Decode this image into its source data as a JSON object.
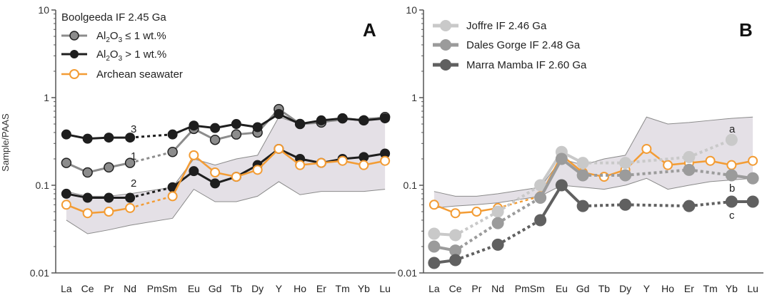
{
  "colors": {
    "axis": "#555555",
    "band_fill": "#e4e0e6",
    "band_stroke": "#8a8a8a",
    "seawater": "#f39c34",
    "boolgeeda_low": "#8c8c8c",
    "boolgeeda_high": "#1e1e1e",
    "joffre": "#c9c9c9",
    "dales": "#9b9b9b",
    "marra": "#606060"
  },
  "shared": {
    "ylabel": "Sample/PAAS",
    "y_ticks": [
      "0.01",
      "0.1",
      "1",
      "10"
    ],
    "categories": [
      "La",
      "Ce",
      "Pr",
      "Nd",
      "Pm",
      "Sm",
      "Eu",
      "Gd",
      "Tb",
      "Dy",
      "Y",
      "Ho",
      "Er",
      "Tm",
      "Yb",
      "Lu"
    ],
    "x_labels": [
      "La",
      "Ce",
      "Pr",
      "Nd",
      "PmSm",
      "Eu",
      "Gd",
      "Tb",
      "Dy",
      "Y",
      "Ho",
      "Er",
      "Tm",
      "Yb",
      "Lu"
    ]
  },
  "chart_data": [
    {
      "type": "line",
      "panel_label": "A",
      "yscale": "log",
      "ylim": [
        0.01,
        10
      ],
      "legend_position": "top-left",
      "legend_title": "Boolgeeda IF 2.45 Ga",
      "legend": [
        {
          "key": "low",
          "pre": "Al",
          "sub1": "2",
          "mid": "O",
          "sub2": "3",
          "post": " ≤ 1 wt.%"
        },
        {
          "key": "high",
          "pre": "Al",
          "sub1": "2",
          "mid": "O",
          "sub2": "3",
          "post": " > 1 wt.%"
        },
        {
          "key": "sw",
          "text": "Archean seawater"
        }
      ],
      "line_labels": [
        "3",
        "1",
        "2"
      ],
      "band": {
        "upper": [
          0.085,
          0.075,
          0.075,
          0.08,
          null,
          0.095,
          0.2,
          0.17,
          0.2,
          0.22,
          0.6,
          0.5,
          0.52,
          0.55,
          0.58,
          0.6
        ],
        "lower": [
          0.04,
          0.028,
          0.031,
          0.035,
          null,
          0.042,
          0.09,
          0.065,
          0.065,
          0.075,
          0.11,
          0.078,
          0.085,
          0.085,
          0.085,
          0.09
        ]
      },
      "series": [
        {
          "key": "low",
          "values": [
            0.18,
            0.14,
            0.16,
            0.18,
            null,
            0.24,
            0.44,
            0.33,
            0.38,
            0.4,
            0.74,
            0.5,
            0.52,
            0.58,
            0.55,
            0.6
          ]
        },
        {
          "key": "high",
          "values": [
            0.38,
            0.34,
            0.35,
            0.35,
            null,
            0.38,
            0.48,
            0.45,
            0.5,
            0.46,
            0.65,
            0.5,
            0.55,
            0.58,
            0.55,
            0.58
          ]
        },
        {
          "key": "high",
          "values": [
            0.08,
            0.072,
            0.072,
            0.072,
            null,
            0.095,
            0.145,
            0.105,
            0.125,
            0.17,
            0.26,
            0.2,
            0.18,
            0.2,
            0.21,
            0.23
          ]
        },
        {
          "key": "sw",
          "values": [
            0.06,
            0.048,
            0.05,
            0.055,
            null,
            0.075,
            0.22,
            0.14,
            0.125,
            0.15,
            0.26,
            0.17,
            0.18,
            0.19,
            0.17,
            0.19
          ]
        }
      ]
    },
    {
      "type": "line",
      "panel_label": "B",
      "yscale": "log",
      "ylim": [
        0.01,
        10
      ],
      "legend_position": "top-left",
      "legend": [
        {
          "key": "joffre",
          "text": "Joffre IF 2.46 Ga"
        },
        {
          "key": "dales",
          "text": "Dales Gorge IF 2.48 Ga"
        },
        {
          "key": "marra",
          "text": "Marra Mamba IF 2.60 Ga"
        }
      ],
      "line_labels": [
        "a",
        "b",
        "c"
      ],
      "band": {
        "upper": [
          0.085,
          0.075,
          0.075,
          0.08,
          null,
          0.095,
          0.2,
          0.17,
          0.2,
          0.22,
          0.6,
          0.5,
          0.52,
          0.55,
          0.58,
          0.6
        ],
        "lower": [
          0.055,
          0.058,
          0.06,
          0.063,
          null,
          0.075,
          0.1,
          0.095,
          0.09,
          0.1,
          0.12,
          0.09,
          0.1,
          0.11,
          0.115,
          0.12
        ]
      },
      "series": [
        {
          "key": "sw",
          "values": [
            0.06,
            0.048,
            0.05,
            0.055,
            null,
            0.075,
            0.22,
            0.14,
            0.125,
            0.15,
            0.26,
            0.17,
            0.18,
            0.19,
            0.17,
            0.19
          ]
        },
        {
          "key": "joffre",
          "values": [
            0.028,
            0.027,
            null,
            0.05,
            null,
            0.1,
            0.24,
            0.18,
            null,
            0.18,
            null,
            null,
            0.21,
            null,
            0.33,
            null
          ]
        },
        {
          "key": "dales",
          "values": [
            0.02,
            0.018,
            null,
            0.037,
            null,
            0.072,
            0.2,
            0.13,
            null,
            0.13,
            null,
            null,
            0.15,
            null,
            0.13,
            0.12
          ]
        },
        {
          "key": "marra",
          "values": [
            0.013,
            0.014,
            null,
            0.021,
            null,
            0.04,
            0.1,
            0.058,
            null,
            0.06,
            null,
            null,
            0.058,
            null,
            0.065,
            0.065
          ]
        }
      ]
    }
  ]
}
